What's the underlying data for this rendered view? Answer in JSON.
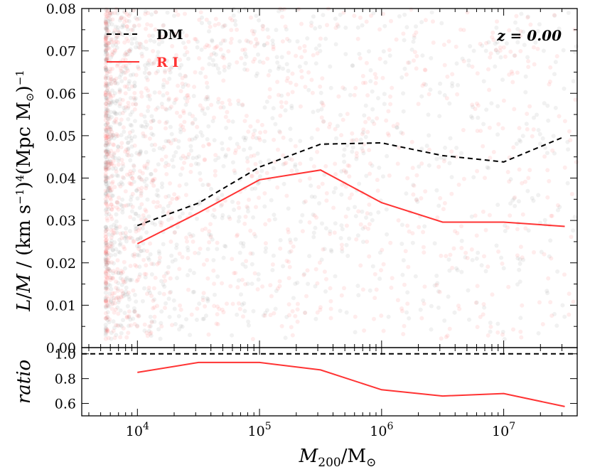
{
  "chart_data": [
    {
      "type": "line",
      "panel": "top",
      "title": "",
      "xlabel": "M200/M⊙",
      "ylabel_parts": [
        "L/M / (km s",
        "−1",
        ")",
        "4",
        "(Mpc M",
        "⊙",
        ")",
        "−1"
      ],
      "xscale": "log",
      "xlim": [
        3500,
        40000000
      ],
      "ylim": [
        0,
        0.08
      ],
      "yticks": [
        0.0,
        0.01,
        0.02,
        0.03,
        0.04,
        0.05,
        0.06,
        0.07,
        0.08
      ],
      "ytick_labels": [
        "0.00",
        "0.01",
        "0.02",
        "0.03",
        "0.04",
        "0.05",
        "0.06",
        "0.07",
        "0.08"
      ],
      "x": [
        10000,
        31623,
        100000,
        316228,
        1000000,
        3162278,
        10000000,
        31622777
      ],
      "series": [
        {
          "name": "DM",
          "style": "dashed",
          "color": "#000000",
          "values": [
            0.0288,
            0.0341,
            0.0426,
            0.048,
            0.0483,
            0.0453,
            0.0438,
            0.0498
          ]
        },
        {
          "name": "R I",
          "style": "solid",
          "color": "#ff3333",
          "values": [
            0.0245,
            0.0318,
            0.0396,
            0.0419,
            0.0342,
            0.0296,
            0.0296,
            0.0286
          ]
        }
      ],
      "legend": [
        "DM",
        "R I"
      ],
      "legend_position": "top-left",
      "annotation": "z = 0.00",
      "annotation_position": "top-right",
      "scatter_background": {
        "description": "dense semi-transparent halo points",
        "x_min": 5500,
        "x_max": 40000000,
        "y_min": 0.002,
        "y_max": 0.08,
        "colors": [
          "#888888",
          "#ff6666"
        ]
      }
    },
    {
      "type": "line",
      "panel": "bottom",
      "ylabel": "ratio",
      "xscale": "log",
      "xlim": [
        3500,
        40000000
      ],
      "ylim": [
        0.5,
        1.05
      ],
      "yticks": [
        0.6,
        0.8,
        1.0
      ],
      "ytick_labels": [
        "0.6",
        "0.8",
        "1.0"
      ],
      "xtick_labels": [
        {
          "value": 10000,
          "base": "10",
          "exp": "4"
        },
        {
          "value": 100000,
          "base": "10",
          "exp": "5"
        },
        {
          "value": 1000000,
          "base": "10",
          "exp": "6"
        },
        {
          "value": 10000000,
          "base": "10",
          "exp": "7"
        }
      ],
      "x": [
        10000,
        31623,
        100000,
        316228,
        1000000,
        3162278,
        10000000,
        31622777
      ],
      "reference_line": {
        "y": 1.0,
        "style": "dashed",
        "color": "#000000"
      },
      "series": [
        {
          "name": "R I / DM",
          "style": "solid",
          "color": "#ff3333",
          "values": [
            0.85,
            0.93,
            0.93,
            0.87,
            0.71,
            0.66,
            0.68,
            0.575
          ]
        }
      ]
    }
  ]
}
